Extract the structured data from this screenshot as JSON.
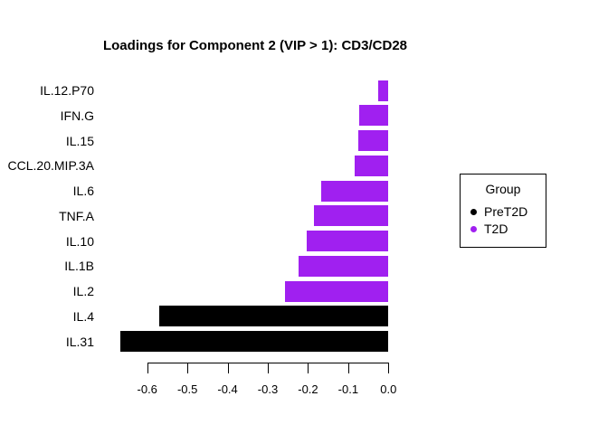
{
  "title": "Loadings for Component 2 (VIP > 1): CD3/CD28",
  "colors": {
    "background": "#ffffff",
    "foreground": "#000000",
    "pret2d": "#000000",
    "t2d": "#a020f0"
  },
  "legend": {
    "title": "Group",
    "entries": [
      {
        "label": "PreT2D",
        "color": "#000000"
      },
      {
        "label": "T2D",
        "color": "#a020f0"
      }
    ],
    "position": "right"
  },
  "chart_data": {
    "type": "bar",
    "orientation": "horizontal",
    "title": "Loadings for Component 2 (VIP > 1): CD3/CD28",
    "xlabel": "",
    "ylabel": "",
    "categories": [
      "IL.12.P70",
      "IFN.G",
      "IL.15",
      "CCL.20.MIP.3A",
      "IL.6",
      "TNF.A",
      "IL.10",
      "IL.1B",
      "IL.2",
      "IL.4",
      "IL.31"
    ],
    "values": [
      -0.025,
      -0.073,
      -0.075,
      -0.084,
      -0.167,
      -0.185,
      -0.204,
      -0.224,
      -0.257,
      -0.57,
      -0.666
    ],
    "groups": [
      "T2D",
      "T2D",
      "T2D",
      "T2D",
      "T2D",
      "T2D",
      "T2D",
      "T2D",
      "T2D",
      "PreT2D",
      "PreT2D"
    ],
    "group_colors": {
      "PreT2D": "#000000",
      "T2D": "#a020f0"
    },
    "x_ticks": [
      -0.6,
      -0.5,
      -0.4,
      -0.3,
      -0.2,
      -0.1,
      0.0
    ],
    "x_tick_labels": [
      "-0.6",
      "-0.5",
      "-0.4",
      "-0.3",
      "-0.2",
      "-0.1",
      "0.0"
    ],
    "xlim": [
      -0.67,
      0.0
    ],
    "grid": false,
    "legend_position": "right"
  }
}
